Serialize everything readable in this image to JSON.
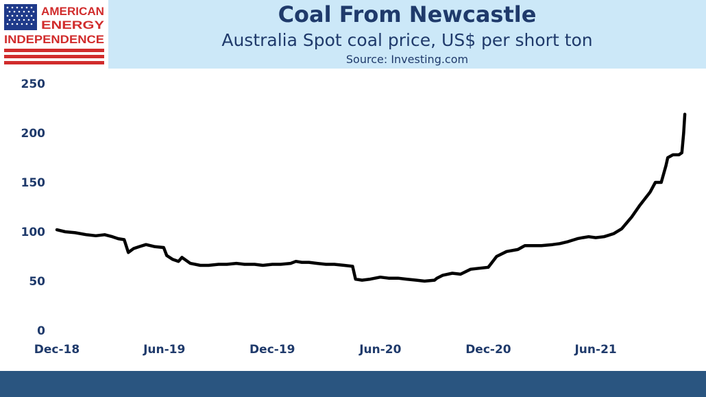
{
  "logo": {
    "line1": "AMERICAN",
    "line2": "ENERGY",
    "line3": "INDEPENDENCE",
    "flag_icon": "us-flag-icon",
    "text_red": "#d12c2c",
    "stripe_red": "#d12c2c",
    "canton_blue": "#1f3a8a"
  },
  "header": {
    "title": "Coal From Newcastle",
    "subtitle": "Australia Spot coal price, US$ per short ton",
    "source": "Source: Investing.com",
    "background": "#cce8f8",
    "text_color": "#1f3a6b"
  },
  "footer": {
    "color": "#2a5580"
  },
  "chart_data": {
    "type": "line",
    "ylim": [
      0,
      250
    ],
    "yticks": [
      0,
      50,
      100,
      150,
      200,
      250
    ],
    "xticks": [
      "Dec-18",
      "Jun-19",
      "Dec-19",
      "Jun-20",
      "Dec-20",
      "Jun-21"
    ],
    "xlim_months": [
      "Dec-18",
      "Sep-21"
    ],
    "grid": false,
    "line_color": "#000000",
    "series": [
      {
        "x": [
          "2018-12-01",
          "2018-12-15",
          "2019-01-01",
          "2019-01-20",
          "2019-02-05",
          "2019-02-20",
          "2019-03-05",
          "2019-03-15",
          "2019-03-25",
          "2019-04-01",
          "2019-04-10",
          "2019-04-20",
          "2019-05-01",
          "2019-05-15",
          "2019-05-31",
          "2019-06-05",
          "2019-06-15",
          "2019-06-25",
          "2019-07-01",
          "2019-07-15",
          "2019-08-01",
          "2019-08-15",
          "2019-09-01",
          "2019-09-15",
          "2019-10-01",
          "2019-10-15",
          "2019-11-01",
          "2019-11-15",
          "2019-12-01",
          "2019-12-15",
          "2020-01-01",
          "2020-01-10",
          "2020-01-20",
          "2020-02-01",
          "2020-02-15",
          "2020-03-01",
          "2020-03-15",
          "2020-04-01",
          "2020-04-15",
          "2020-04-20",
          "2020-05-01",
          "2020-05-15",
          "2020-06-01",
          "2020-06-15",
          "2020-07-01",
          "2020-07-15",
          "2020-08-01",
          "2020-08-15",
          "2020-09-01",
          "2020-09-05",
          "2020-09-15",
          "2020-10-01",
          "2020-10-15",
          "2020-11-01",
          "2020-11-15",
          "2020-12-01",
          "2020-12-15",
          "2021-01-01",
          "2021-01-20",
          "2021-02-01",
          "2021-02-15",
          "2021-03-01",
          "2021-03-20",
          "2021-04-01",
          "2021-04-15",
          "2021-05-01",
          "2021-05-10",
          "2021-05-20",
          "2021-06-01",
          "2021-06-15",
          "2021-07-01",
          "2021-07-15",
          "2021-08-01",
          "2021-08-15",
          "2021-09-01",
          "2021-09-10",
          "2021-09-20",
          "2021-09-28",
          "2021-10-01"
        ],
        "y": [
          102,
          100,
          99,
          97,
          96,
          97,
          95,
          93,
          92,
          79,
          83,
          85,
          87,
          85,
          84,
          76,
          72,
          70,
          74,
          68,
          66,
          66,
          67,
          67,
          68,
          67,
          67,
          66,
          67,
          67,
          68,
          70,
          69,
          69,
          68,
          67,
          67,
          66,
          65,
          52,
          51,
          52,
          54,
          53,
          53,
          52,
          51,
          50,
          51,
          53,
          56,
          58,
          57,
          62,
          63,
          64,
          75,
          80,
          82,
          86,
          86,
          86,
          87,
          88,
          90,
          93,
          94,
          95,
          94,
          95,
          98,
          103,
          115,
          127,
          140,
          150,
          150,
          167,
          175
        ]
      }
    ],
    "extra_points": [
      {
        "x": "2021-10-10",
        "y": 178
      },
      {
        "x": "2021-10-20",
        "y": 178
      },
      {
        "x": "2021-10-25",
        "y": 180
      },
      {
        "x": "2021-10-28",
        "y": 200
      },
      {
        "x": "2021-10-30",
        "y": 219
      }
    ]
  }
}
